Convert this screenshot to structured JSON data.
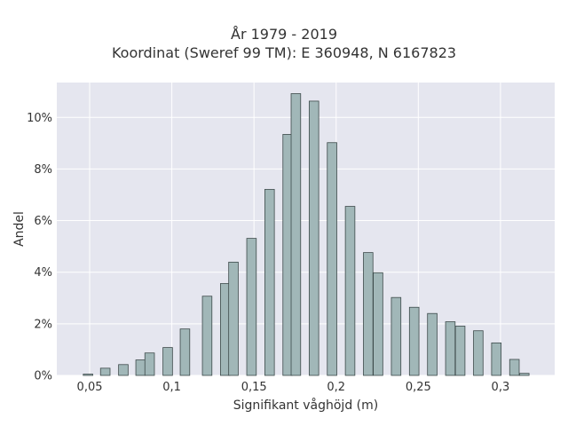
{
  "chart_data": {
    "type": "bar",
    "title_lines": [
      "År 1979 - 2019",
      "Koordinat (Sweref 99 TM): E 360948, N 6167823"
    ],
    "xlabel": "Signifikant våghöjd (m)",
    "ylabel": "Andel",
    "xlim": [
      0.03,
      0.333
    ],
    "ylim": [
      0,
      0.1135
    ],
    "x_ticks": [
      0.05,
      0.1,
      0.15,
      0.2,
      0.25,
      0.3
    ],
    "x_tick_labels": [
      "0,05",
      "0,1",
      "0,15",
      "0,2",
      "0,25",
      "0,3"
    ],
    "y_ticks": [
      0,
      0.02,
      0.04,
      0.06,
      0.08,
      0.1
    ],
    "y_tick_labels": [
      "0%",
      "2%",
      "4%",
      "6%",
      "8%",
      "10%"
    ],
    "grid": true,
    "bar_width": 0.0058,
    "bar_color": "#a1b7b8",
    "bar_edge_color": "#3d4a4a",
    "plot_background": "#e5e6ef",
    "x": [
      0.049,
      0.0595,
      0.0705,
      0.081,
      0.0865,
      0.0975,
      0.108,
      0.1215,
      0.1325,
      0.1375,
      0.1485,
      0.1595,
      0.1705,
      0.1755,
      0.1865,
      0.1975,
      0.2085,
      0.2195,
      0.2255,
      0.2365,
      0.2475,
      0.2585,
      0.2695,
      0.2755,
      0.2865,
      0.2975,
      0.3085,
      0.3145
    ],
    "values": [
      0.0005,
      0.0028,
      0.0042,
      0.006,
      0.0087,
      0.0108,
      0.018,
      0.0307,
      0.0356,
      0.0439,
      0.0531,
      0.0721,
      0.0934,
      0.1092,
      0.1063,
      0.0902,
      0.0655,
      0.0476,
      0.0398,
      0.0302,
      0.0264,
      0.024,
      0.0208,
      0.0191,
      0.0173,
      0.0126,
      0.0062,
      0.0008
    ]
  }
}
